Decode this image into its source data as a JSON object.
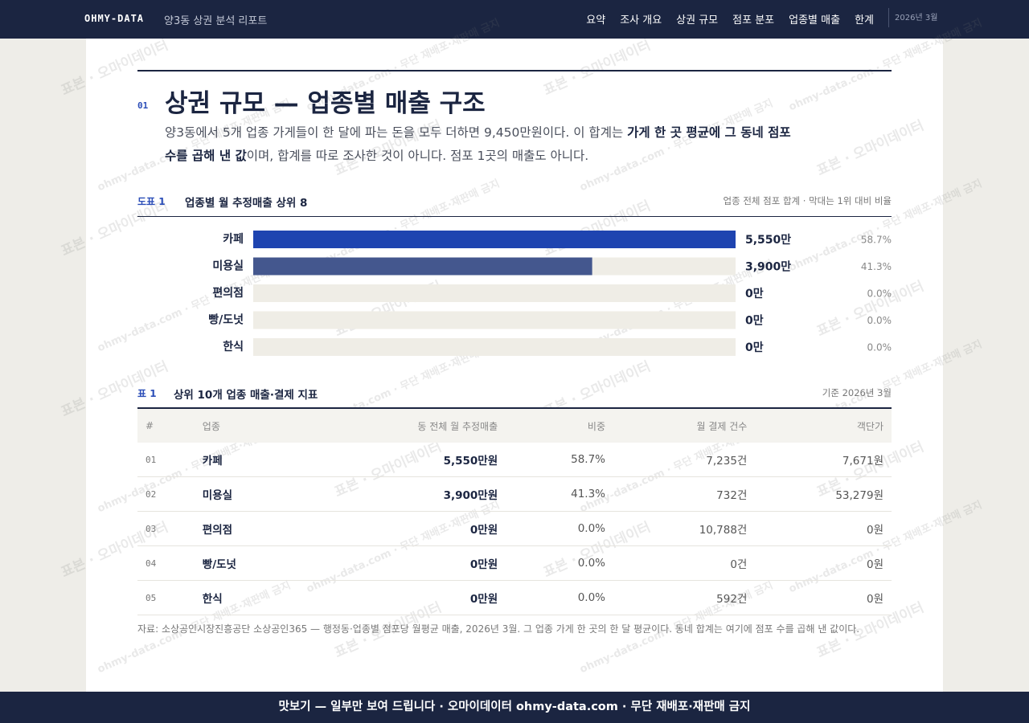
{
  "nav": {
    "brand": "OHMY-DATA",
    "subtitle": "양3동 상권 분석 리포트",
    "links": [
      "요약",
      "조사 개요",
      "상권 규모",
      "점포 분포",
      "업종별 매출",
      "한계"
    ],
    "date": "2026년 3월"
  },
  "section": {
    "number": "01",
    "title": "상권 규모 — 업종별 매출 구조",
    "lead": [
      {
        "text": "양3동에서 5개 업종 가게들이 한 달에 파는 돈을 모두 더하면 9,450만원이다. 이 합계는 ",
        "bold": false
      },
      {
        "text": "가게 한 곳 평균에 그 동네 점포 수를 곱해 낸 값",
        "bold": true
      },
      {
        "text": "이며, 합계를 따로 조사한 것이 아니다. 점포 1곳의 매출도 아니다.",
        "bold": false
      }
    ]
  },
  "figure": {
    "label": "도표 1",
    "title": "업종별 월 추정매출 상위 8",
    "note": "업종 전체 점포 합계 · 막대는 1위 대비 비율"
  },
  "chart_data": {
    "type": "bar",
    "orientation": "horizontal",
    "categories": [
      "카페",
      "미용실",
      "편의점",
      "빵/도넛",
      "한식"
    ],
    "values": [
      5550,
      3900,
      0,
      0,
      0
    ],
    "value_labels": [
      "5,550만",
      "3,900만",
      "0만",
      "0만",
      "0만"
    ],
    "shares": [
      58.7,
      41.3,
      0.0,
      0.0,
      0.0
    ],
    "share_labels": [
      "58.7%",
      "41.3%",
      "0.0%",
      "0.0%",
      "0.0%"
    ],
    "colors": [
      "#1e44b0",
      "#44578e",
      "#3e5590",
      "#8a93aa",
      "#8a93aa"
    ],
    "track_color": "#efede6",
    "xlim": [
      0,
      5550
    ]
  },
  "table": {
    "label": "표 1",
    "title": "상위 10개 업종 매출·결제 지표",
    "note": "기준 2026년 3월",
    "headers": [
      "#",
      "업종",
      "동 전체 월 추정매출",
      "비중",
      "월 결제 건수",
      "객단가"
    ],
    "rows": [
      [
        "01",
        "카페",
        "5,550만원",
        "58.7%",
        "7,235건",
        "7,671원"
      ],
      [
        "02",
        "미용실",
        "3,900만원",
        "41.3%",
        "732건",
        "53,279원"
      ],
      [
        "03",
        "편의점",
        "0만원",
        "0.0%",
        "10,788건",
        "0원"
      ],
      [
        "04",
        "빵/도넛",
        "0만원",
        "0.0%",
        "0건",
        "0원"
      ],
      [
        "05",
        "한식",
        "0만원",
        "0.0%",
        "592건",
        "0원"
      ]
    ]
  },
  "source": "자료: 소상공인시장진흥공단 소상공인365 — 행정동·업종별 점포당 월평균 매출, 2026년 3월. 그 업종 가게 한 곳의 한 달 평균이다. 동네 합계는 여기에 점포 수를 곱해 낸 값이다.",
  "footer": "맛보기 — 일부만 보여 드립니다 · 오마이데이터 ohmy-data.com · 무단 재배포·재판매 금지",
  "watermark": [
    "표본 · 오마이데이터",
    "ohmy-data.com · 무단 재배포·재판매 금지"
  ]
}
